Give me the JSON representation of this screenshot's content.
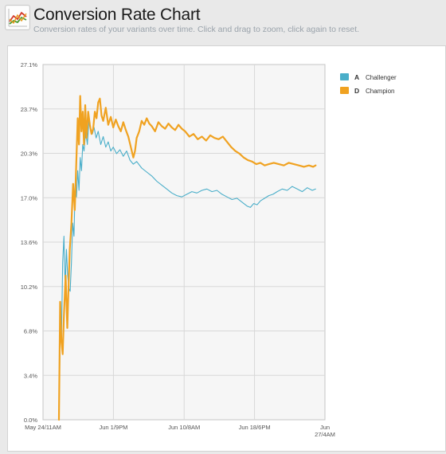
{
  "header": {
    "title": "Conversion Rate Chart",
    "subtitle": "Conversion rates of your variants over time. Click and drag to zoom, click again to reset."
  },
  "icons": {
    "chart": "line-chart-icon"
  },
  "colors": {
    "plot_background": "#f6f6f6",
    "grid": "#d8d8d8",
    "axis_text": "#555555"
  },
  "chart_data": {
    "type": "line",
    "title": "",
    "xlabel": "",
    "ylabel": "",
    "ylim": [
      0,
      27.1
    ],
    "y_ticks": [
      "0.0%",
      "3.4%",
      "6.8%",
      "10.2%",
      "13.6%",
      "17.0%",
      "20.3%",
      "23.7%",
      "27.1%"
    ],
    "x_ticks": [
      {
        "label": [
          "May 24/11AM"
        ],
        "day": 0
      },
      {
        "label": [
          "Jun 1/9PM"
        ],
        "day": 8.42
      },
      {
        "label": [
          "Jun 10/8AM"
        ],
        "day": 16.88
      },
      {
        "label": [
          "Jun 18/6PM"
        ],
        "day": 25.29
      },
      {
        "label": [
          "Jun",
          "27/4AM"
        ],
        "day": 33.71
      }
    ],
    "xlim": [
      0,
      33.71
    ],
    "grid": true,
    "legend_position": "top-right",
    "series": [
      {
        "key": "A",
        "name": "Challenger",
        "color": "#4aaec9",
        "x": [
          1.9,
          2.0,
          2.1,
          2.2,
          2.35,
          2.5,
          2.65,
          2.8,
          2.95,
          3.1,
          3.25,
          3.4,
          3.55,
          3.7,
          3.85,
          4.0,
          4.15,
          4.3,
          4.45,
          4.6,
          4.75,
          4.9,
          5.1,
          5.3,
          5.5,
          5.7,
          5.9,
          6.1,
          6.35,
          6.6,
          6.9,
          7.2,
          7.5,
          7.8,
          8.1,
          8.4,
          8.8,
          9.2,
          9.6,
          10.0,
          10.4,
          10.8,
          11.2,
          11.8,
          12.4,
          13.0,
          13.6,
          14.2,
          14.8,
          15.4,
          16.0,
          16.6,
          17.2,
          17.8,
          18.4,
          19.0,
          19.6,
          20.2,
          20.8,
          21.4,
          22.0,
          22.6,
          23.2,
          23.8,
          24.4,
          24.8,
          25.2,
          25.6,
          26.0,
          26.5,
          27.0,
          27.5,
          28.0,
          28.6,
          29.2,
          29.8,
          30.4,
          31.0,
          31.6,
          32.2,
          32.6
        ],
        "y": [
          0,
          4,
          9,
          6,
          12,
          14,
          10,
          13,
          11,
          10,
          9.8,
          12,
          15,
          14,
          18,
          17,
          19,
          17.5,
          20,
          19,
          21,
          20.5,
          22,
          21,
          23,
          22,
          21.8,
          22.3,
          21.5,
          22,
          21,
          21.6,
          20.8,
          21.2,
          20.5,
          20.8,
          20.3,
          20.6,
          20.1,
          20.5,
          19.8,
          19.5,
          19.7,
          19.2,
          18.9,
          18.6,
          18.2,
          17.9,
          17.6,
          17.3,
          17.1,
          17.0,
          17.2,
          17.4,
          17.3,
          17.5,
          17.6,
          17.4,
          17.5,
          17.2,
          17.0,
          16.8,
          16.9,
          16.6,
          16.3,
          16.2,
          16.5,
          16.4,
          16.7,
          16.9,
          17.1,
          17.2,
          17.4,
          17.6,
          17.5,
          17.8,
          17.6,
          17.4,
          17.7,
          17.5,
          17.6
        ]
      },
      {
        "key": "D",
        "name": "Champion",
        "color": "#f0a221",
        "x": [
          1.9,
          2.05,
          2.2,
          2.35,
          2.5,
          2.7,
          2.9,
          3.05,
          3.2,
          3.4,
          3.6,
          3.8,
          4.0,
          4.15,
          4.3,
          4.45,
          4.6,
          4.75,
          4.9,
          5.05,
          5.2,
          5.4,
          5.6,
          5.8,
          6.0,
          6.2,
          6.4,
          6.6,
          6.8,
          7.0,
          7.2,
          7.5,
          7.8,
          8.1,
          8.4,
          8.7,
          9.0,
          9.3,
          9.6,
          9.9,
          10.2,
          10.5,
          10.8,
          11.0,
          11.2,
          11.5,
          11.8,
          12.1,
          12.4,
          12.7,
          13.0,
          13.4,
          13.8,
          14.2,
          14.6,
          15.0,
          15.4,
          15.8,
          16.2,
          16.6,
          17.0,
          17.5,
          18.0,
          18.5,
          19.0,
          19.5,
          20.0,
          20.5,
          21.0,
          21.5,
          22.0,
          22.5,
          23.0,
          23.5,
          24.0,
          24.5,
          25.0,
          25.5,
          26.0,
          26.5,
          27.0,
          27.6,
          28.2,
          28.8,
          29.4,
          30.0,
          30.6,
          31.2,
          31.8,
          32.3,
          32.6
        ],
        "y": [
          0,
          9,
          6,
          5,
          8,
          11,
          7,
          10,
          13,
          15,
          18,
          16,
          20,
          23,
          21,
          24.7,
          22,
          23.5,
          21,
          24,
          21.5,
          23.5,
          22.5,
          21.8,
          22.2,
          23.5,
          23,
          24.2,
          24.5,
          23.2,
          22.8,
          23.8,
          22.5,
          23.1,
          22.3,
          22.9,
          22.4,
          22.0,
          22.7,
          22.1,
          21.6,
          20.8,
          20.0,
          20.5,
          21.5,
          22.0,
          22.8,
          22.5,
          23.0,
          22.6,
          22.4,
          22.0,
          22.7,
          22.4,
          22.2,
          22.6,
          22.3,
          22.1,
          22.5,
          22.2,
          22.0,
          21.6,
          21.8,
          21.4,
          21.6,
          21.3,
          21.7,
          21.5,
          21.4,
          21.6,
          21.2,
          20.8,
          20.5,
          20.3,
          20.0,
          19.8,
          19.7,
          19.5,
          19.6,
          19.4,
          19.5,
          19.6,
          19.5,
          19.4,
          19.6,
          19.5,
          19.4,
          19.3,
          19.4,
          19.3,
          19.4
        ]
      }
    ]
  }
}
